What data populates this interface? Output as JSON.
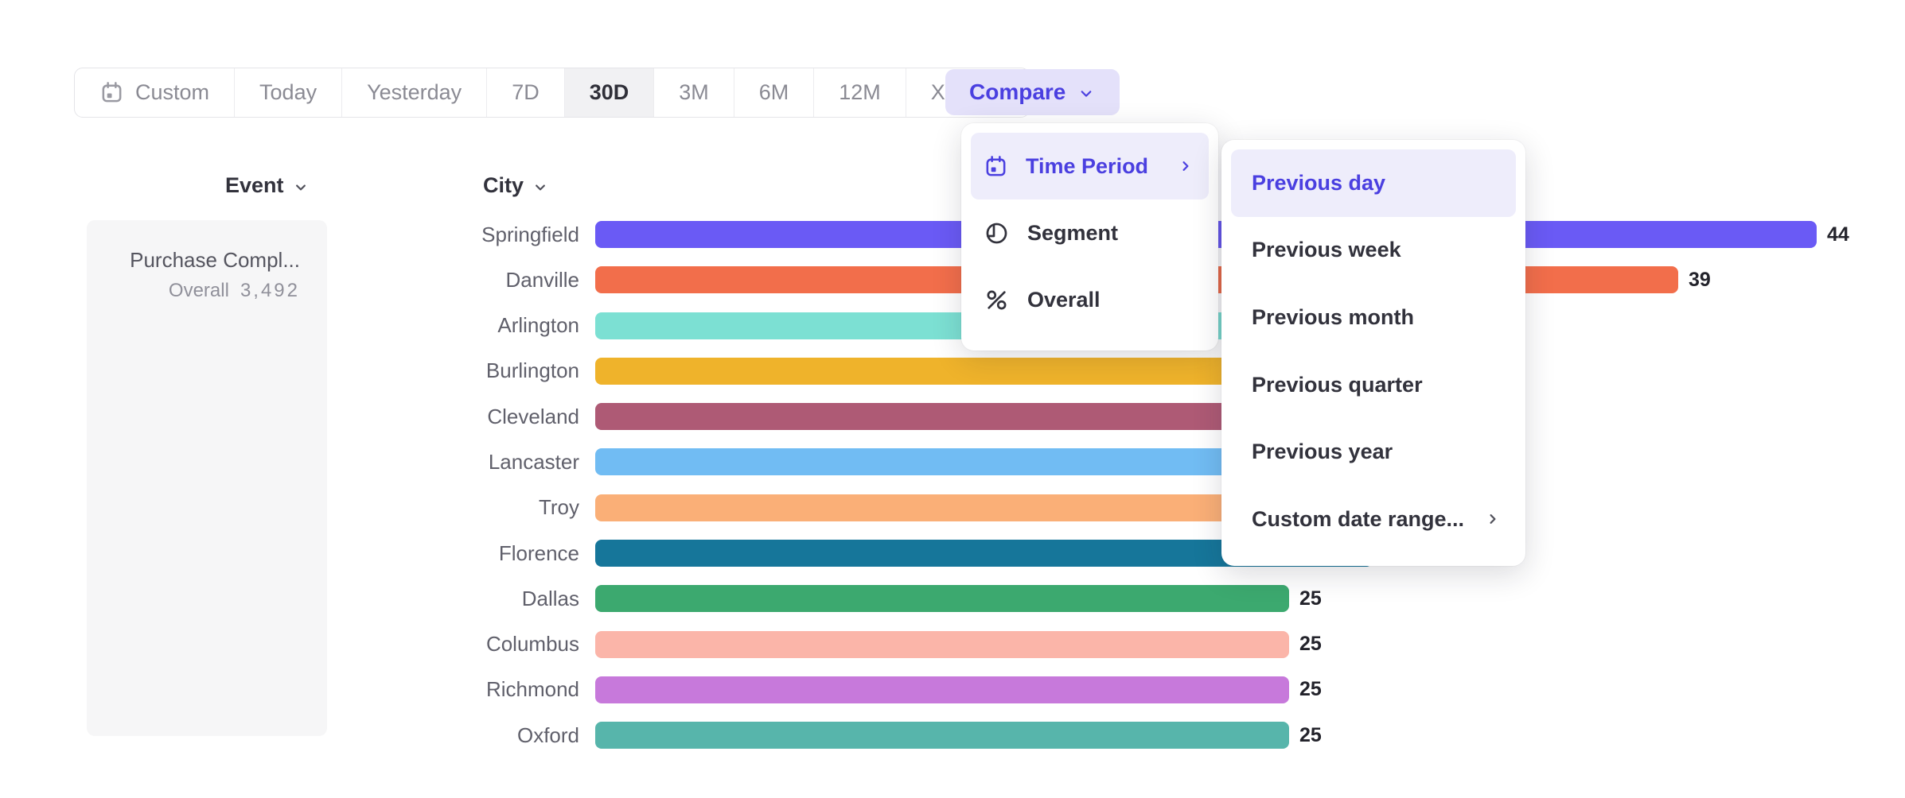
{
  "theme": {
    "accent": "#4A3FE0",
    "accent_bg": "#E4E1FA",
    "menu_highlight_bg": "#EEEDFB",
    "event_panel_bg": "#F6F6F7",
    "toolbar_selected_bg": "#F1F1F3"
  },
  "toolbar": {
    "buttons": [
      {
        "label": "Custom",
        "icon": "calendar-icon",
        "selected": false,
        "has_chevron": false
      },
      {
        "label": "Today",
        "selected": false,
        "has_chevron": false
      },
      {
        "label": "Yesterday",
        "selected": false,
        "has_chevron": false
      },
      {
        "label": "7D",
        "selected": false,
        "has_chevron": false
      },
      {
        "label": "30D",
        "selected": true,
        "has_chevron": false
      },
      {
        "label": "3M",
        "selected": false,
        "has_chevron": false
      },
      {
        "label": "6M",
        "selected": false,
        "has_chevron": false
      },
      {
        "label": "12M",
        "selected": false,
        "has_chevron": false
      },
      {
        "label": "XTD",
        "selected": false,
        "has_chevron": true
      }
    ],
    "compare_label": "Compare"
  },
  "headers": {
    "event": "Event",
    "city": "City"
  },
  "event_panel": {
    "event_name": "Purchase Compl...",
    "overall_label": "Overall",
    "overall_value": "3,492"
  },
  "chart_data": {
    "type": "bar",
    "orientation": "horizontal",
    "group_label": "City",
    "categories": [
      "Springfield",
      "Danville",
      "Arlington",
      "Burlington",
      "Cleveland",
      "Lancaster",
      "Troy",
      "Florence",
      "Dallas",
      "Columbus",
      "Richmond",
      "Oxford"
    ],
    "values": [
      44,
      39,
      33,
      32,
      31,
      30,
      29,
      28,
      25,
      25,
      25,
      25
    ],
    "value_labels_visible": [
      true,
      true,
      false,
      false,
      false,
      false,
      false,
      false,
      true,
      true,
      true,
      true
    ],
    "hidden_values_estimated": true,
    "colors": [
      "#6A5AF5",
      "#F26E4B",
      "#7CE0D3",
      "#EFB32B",
      "#AE5A75",
      "#71BCF3",
      "#FAAF77",
      "#16769A",
      "#3CA96F",
      "#FBB5A9",
      "#C779DB",
      "#57B5AB"
    ],
    "xmax": 44,
    "xlabel": "",
    "ylabel": "City"
  },
  "compare_menu": {
    "items": [
      {
        "label": "Time Period",
        "icon": "calendar-icon",
        "selected": true,
        "has_submenu": true
      },
      {
        "label": "Segment",
        "icon": "segment-icon",
        "selected": false,
        "has_submenu": false
      },
      {
        "label": "Overall",
        "icon": "percent-icon",
        "selected": false,
        "has_submenu": false
      }
    ]
  },
  "time_period_menu": {
    "items": [
      {
        "label": "Previous day",
        "selected": true,
        "has_submenu": false
      },
      {
        "label": "Previous week",
        "selected": false,
        "has_submenu": false
      },
      {
        "label": "Previous month",
        "selected": false,
        "has_submenu": false
      },
      {
        "label": "Previous quarter",
        "selected": false,
        "has_submenu": false
      },
      {
        "label": "Previous year",
        "selected": false,
        "has_submenu": false
      },
      {
        "label": "Custom date range...",
        "selected": false,
        "has_submenu": true
      }
    ]
  }
}
